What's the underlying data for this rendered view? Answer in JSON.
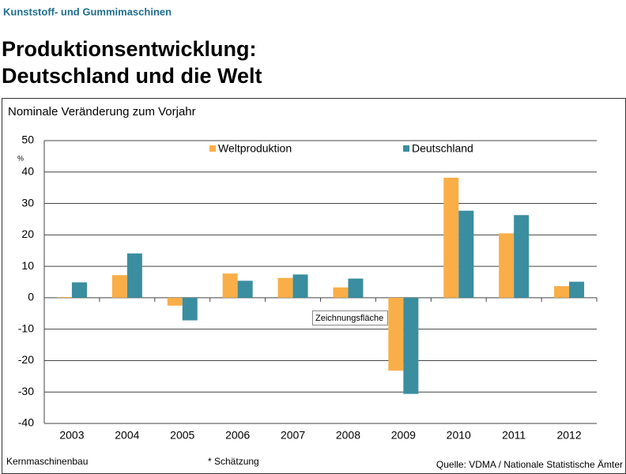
{
  "page": {
    "header": "Kunststoff- und Gummimaschinen",
    "title_lines": [
      "Produktionsentwicklung:",
      "Deutschland und die Welt"
    ],
    "footer": {
      "left": "Kernmaschinenbau",
      "note": "* Schätzung",
      "source": "Quelle: VDMA / Nationale Statistische Ämter"
    },
    "tooltip": "Zeichnungsfläche"
  },
  "chart_data": {
    "type": "bar",
    "title": "Nominale Veränderung zum Vorjahr",
    "y_unit": "%",
    "categories": [
      "2003",
      "2004",
      "2005",
      "2006",
      "2007",
      "2008",
      "2009",
      "2010",
      "2011",
      "2012"
    ],
    "series": [
      {
        "name": "Weltproduktion",
        "color": "#f9ae47",
        "values": [
          0.2,
          7.2,
          -2.5,
          7.7,
          6.3,
          3.3,
          -23.2,
          38.2,
          20.5,
          3.7
        ]
      },
      {
        "name": "Deutschland",
        "color": "#3a8ea0",
        "values": [
          4.9,
          14.1,
          -7.2,
          5.4,
          7.4,
          6.1,
          -30.6,
          27.7,
          26.3,
          5.1
        ]
      }
    ],
    "ylim": [
      -40,
      50
    ],
    "yticks": [
      -40,
      -30,
      -20,
      -10,
      0,
      10,
      20,
      30,
      40,
      50
    ],
    "grid": true,
    "legend": "top"
  }
}
